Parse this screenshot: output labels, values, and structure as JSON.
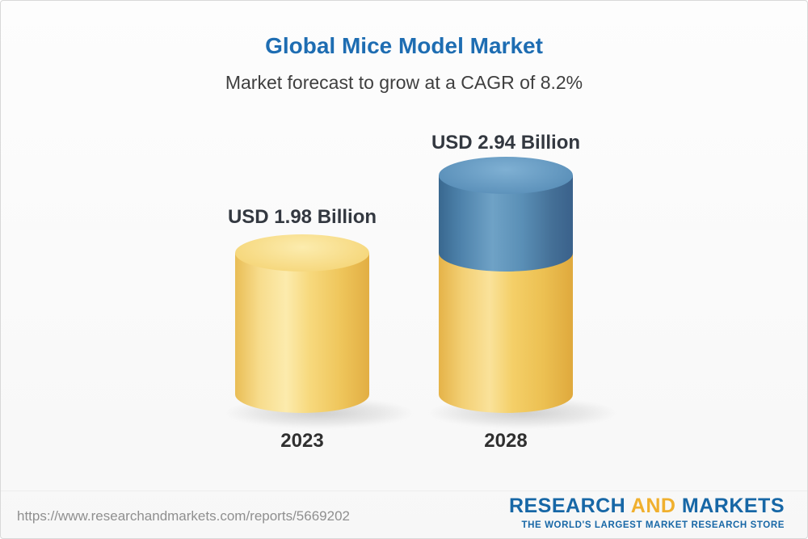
{
  "chart_data": {
    "type": "bar",
    "title": "Global Mice Model Market",
    "subtitle": "Market forecast to grow at a CAGR of 8.2%",
    "unit": "USD Billion",
    "cagr_pct": 8.2,
    "categories": [
      "2023",
      "2028"
    ],
    "values": [
      1.98,
      2.94
    ],
    "ylim": [
      0,
      3.2
    ],
    "grid": false,
    "legend": "none",
    "bars": [
      {
        "category": "2023",
        "value": 1.98,
        "label": "USD 1.98 Billion",
        "segments": [
          {
            "name": "base",
            "value": 1.98,
            "color": "#F7D97E"
          }
        ]
      },
      {
        "category": "2028",
        "value": 2.94,
        "label": "USD 2.94 Billion",
        "segments": [
          {
            "name": "base",
            "value": 1.98,
            "color": "#F4CF68"
          },
          {
            "name": "growth",
            "value": 0.96,
            "color": "#4E81AD"
          }
        ]
      }
    ],
    "colors": {
      "title_blue": "#1E6DB2",
      "bar_gold": "#F4CF68",
      "bar_blue": "#4E81AD"
    }
  },
  "footer": {
    "url": "https://www.researchandmarkets.com/reports/5669202",
    "logo": {
      "research": "RESEARCH",
      "and": "AND",
      "markets": "MARKETS",
      "tagline": "THE WORLD'S LARGEST MARKET RESEARCH STORE"
    }
  }
}
